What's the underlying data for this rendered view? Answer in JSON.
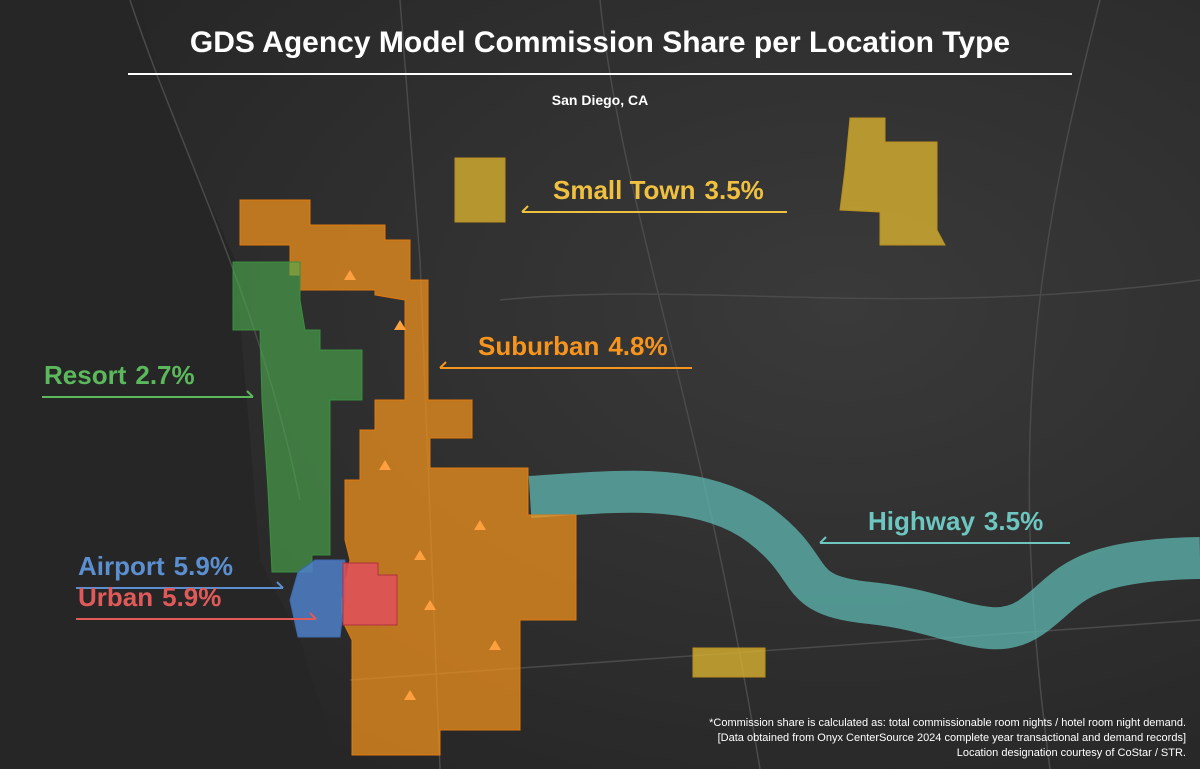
{
  "header": {
    "title": "GDS Agency Model Commission Share per Location Type",
    "subtitle": "San Diego, CA"
  },
  "regions": [
    {
      "name": "Small Town",
      "share": "3.5%"
    },
    {
      "name": "Suburban",
      "share": "4.8%"
    },
    {
      "name": "Resort",
      "share": "2.7%"
    },
    {
      "name": "Highway",
      "share": "3.5%"
    },
    {
      "name": "Airport",
      "share": "5.9%"
    },
    {
      "name": "Urban",
      "share": "5.9%"
    }
  ],
  "footnotes": [
    "*Commission share is calculated as: total commissionable room nights / hotel room night demand.",
    "[Data obtained from Onyx CenterSource 2024 complete year transactional and demand records]",
    "Location designation courtesy of CoStar / STR."
  ]
}
